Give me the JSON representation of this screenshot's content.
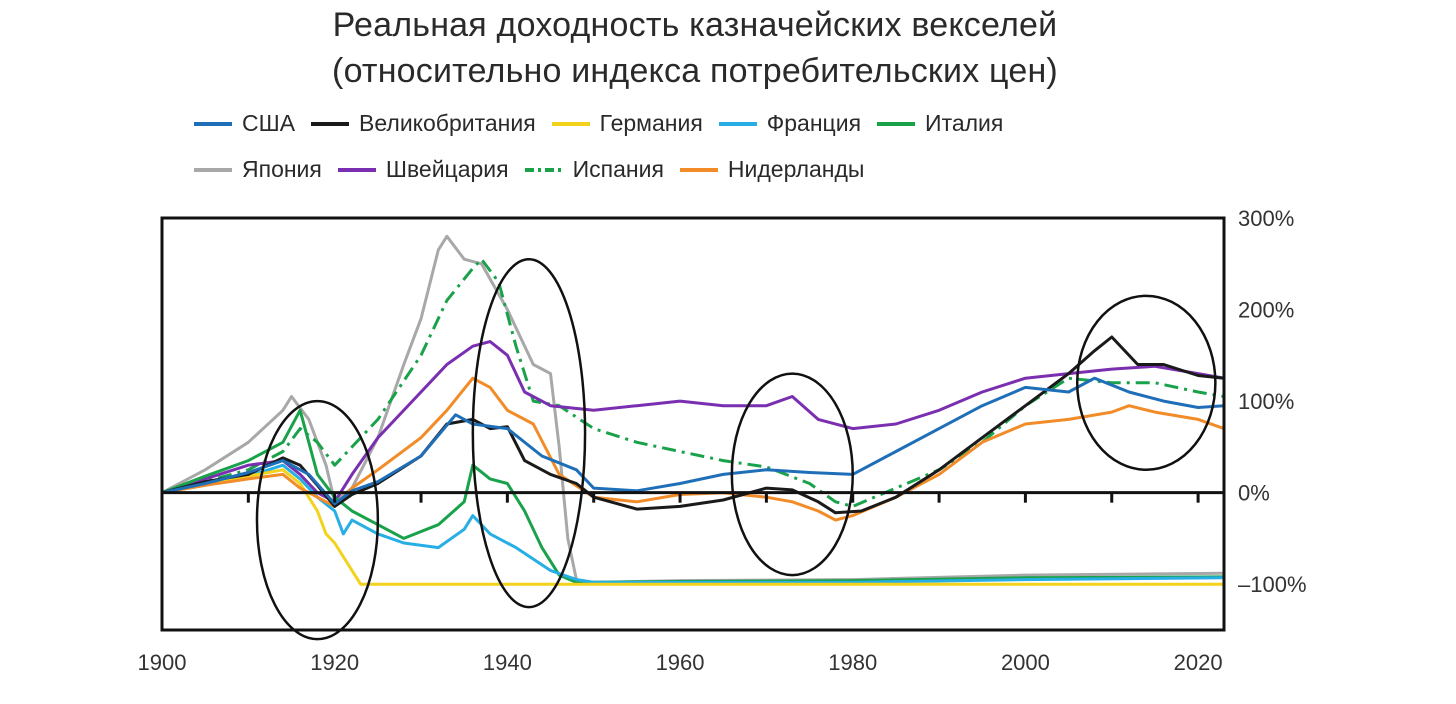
{
  "chart_data": {
    "type": "line",
    "title": "Реальная доходность казначейских векселей",
    "subtitle": "(относительно индекса потребительских цен)",
    "xlabel": "",
    "ylabel": "",
    "xlim": [
      1900,
      2023
    ],
    "ylim": [
      -150,
      300
    ],
    "x_ticks": [
      1900,
      1920,
      1940,
      1960,
      1980,
      2000,
      2020
    ],
    "x_tick_labels": [
      "1900",
      "1920",
      "1940",
      "1960",
      "1980",
      "2000",
      "2020"
    ],
    "y_ticks": [
      300,
      200,
      100,
      0,
      -100
    ],
    "y_tick_labels": [
      "300%",
      "200%",
      "100%",
      "0%",
      "–100%"
    ],
    "legend_position": "top",
    "series": [
      {
        "name": "США",
        "color": "#1f6fb8",
        "dash": "solid",
        "points": [
          [
            1900,
            0
          ],
          [
            1905,
            10
          ],
          [
            1910,
            22
          ],
          [
            1914,
            35
          ],
          [
            1917,
            20
          ],
          [
            1920,
            -12
          ],
          [
            1922,
            2
          ],
          [
            1925,
            12
          ],
          [
            1930,
            40
          ],
          [
            1934,
            85
          ],
          [
            1936,
            75
          ],
          [
            1940,
            70
          ],
          [
            1944,
            40
          ],
          [
            1948,
            25
          ],
          [
            1950,
            5
          ],
          [
            1955,
            2
          ],
          [
            1960,
            10
          ],
          [
            1965,
            20
          ],
          [
            1970,
            25
          ],
          [
            1975,
            22
          ],
          [
            1980,
            20
          ],
          [
            1985,
            45
          ],
          [
            1990,
            70
          ],
          [
            1995,
            95
          ],
          [
            2000,
            115
          ],
          [
            2005,
            110
          ],
          [
            2008,
            125
          ],
          [
            2012,
            110
          ],
          [
            2016,
            100
          ],
          [
            2020,
            93
          ],
          [
            2023,
            95
          ]
        ]
      },
      {
        "name": "Великобритания",
        "color": "#1a1a1a",
        "dash": "solid",
        "points": [
          [
            1900,
            0
          ],
          [
            1905,
            12
          ],
          [
            1910,
            20
          ],
          [
            1914,
            38
          ],
          [
            1916,
            30
          ],
          [
            1918,
            8
          ],
          [
            1920,
            -15
          ],
          [
            1922,
            -2
          ],
          [
            1925,
            10
          ],
          [
            1930,
            40
          ],
          [
            1933,
            75
          ],
          [
            1936,
            80
          ],
          [
            1938,
            70
          ],
          [
            1940,
            72
          ],
          [
            1942,
            35
          ],
          [
            1945,
            20
          ],
          [
            1948,
            10
          ],
          [
            1950,
            -5
          ],
          [
            1955,
            -18
          ],
          [
            1960,
            -15
          ],
          [
            1965,
            -8
          ],
          [
            1970,
            5
          ],
          [
            1973,
            3
          ],
          [
            1976,
            -10
          ],
          [
            1978,
            -22
          ],
          [
            1981,
            -20
          ],
          [
            1985,
            -5
          ],
          [
            1990,
            25
          ],
          [
            1995,
            60
          ],
          [
            2000,
            95
          ],
          [
            2005,
            130
          ],
          [
            2008,
            155
          ],
          [
            2010,
            170
          ],
          [
            2013,
            140
          ],
          [
            2016,
            140
          ],
          [
            2020,
            128
          ],
          [
            2023,
            125
          ]
        ]
      },
      {
        "name": "Германия",
        "color": "#f2d21a",
        "dash": "solid",
        "points": [
          [
            1900,
            0
          ],
          [
            1905,
            8
          ],
          [
            1910,
            18
          ],
          [
            1914,
            25
          ],
          [
            1916,
            10
          ],
          [
            1918,
            -20
          ],
          [
            1919,
            -45
          ],
          [
            1920,
            -55
          ],
          [
            1922,
            -85
          ],
          [
            1923,
            -100
          ],
          [
            1930,
            -100
          ],
          [
            1950,
            -100
          ],
          [
            1980,
            -100
          ],
          [
            2000,
            -100
          ],
          [
            2023,
            -100
          ]
        ]
      },
      {
        "name": "Франция",
        "color": "#27aee5",
        "dash": "solid",
        "points": [
          [
            1900,
            0
          ],
          [
            1905,
            8
          ],
          [
            1910,
            18
          ],
          [
            1914,
            30
          ],
          [
            1916,
            15
          ],
          [
            1918,
            -5
          ],
          [
            1920,
            -20
          ],
          [
            1921,
            -45
          ],
          [
            1922,
            -30
          ],
          [
            1925,
            -45
          ],
          [
            1928,
            -55
          ],
          [
            1932,
            -60
          ],
          [
            1935,
            -40
          ],
          [
            1936,
            -25
          ],
          [
            1938,
            -45
          ],
          [
            1941,
            -60
          ],
          [
            1945,
            -85
          ],
          [
            1948,
            -95
          ],
          [
            1950,
            -98
          ],
          [
            1960,
            -98
          ],
          [
            1980,
            -98
          ],
          [
            2000,
            -95
          ],
          [
            2023,
            -93
          ]
        ]
      },
      {
        "name": "Италия",
        "color": "#1aa24b",
        "dash": "solid",
        "points": [
          [
            1900,
            0
          ],
          [
            1905,
            18
          ],
          [
            1910,
            35
          ],
          [
            1914,
            55
          ],
          [
            1916,
            90
          ],
          [
            1917,
            55
          ],
          [
            1918,
            20
          ],
          [
            1920,
            -5
          ],
          [
            1922,
            -20
          ],
          [
            1925,
            -35
          ],
          [
            1928,
            -50
          ],
          [
            1932,
            -35
          ],
          [
            1935,
            -10
          ],
          [
            1936,
            30
          ],
          [
            1938,
            15
          ],
          [
            1940,
            10
          ],
          [
            1942,
            -20
          ],
          [
            1944,
            -60
          ],
          [
            1946,
            -90
          ],
          [
            1948,
            -98
          ],
          [
            1960,
            -97
          ],
          [
            1980,
            -96
          ],
          [
            2000,
            -93
          ],
          [
            2023,
            -92
          ]
        ]
      },
      {
        "name": "Япония",
        "color": "#a8a8a8",
        "dash": "solid",
        "points": [
          [
            1900,
            0
          ],
          [
            1905,
            25
          ],
          [
            1910,
            55
          ],
          [
            1914,
            90
          ],
          [
            1915,
            105
          ],
          [
            1917,
            80
          ],
          [
            1919,
            30
          ],
          [
            1920,
            -10
          ],
          [
            1922,
            5
          ],
          [
            1925,
            60
          ],
          [
            1928,
            140
          ],
          [
            1930,
            190
          ],
          [
            1932,
            265
          ],
          [
            1933,
            280
          ],
          [
            1935,
            255
          ],
          [
            1937,
            250
          ],
          [
            1940,
            200
          ],
          [
            1943,
            140
          ],
          [
            1945,
            130
          ],
          [
            1946,
            50
          ],
          [
            1947,
            -50
          ],
          [
            1948,
            -95
          ],
          [
            1950,
            -98
          ],
          [
            1960,
            -96
          ],
          [
            1980,
            -95
          ],
          [
            2000,
            -90
          ],
          [
            2023,
            -88
          ]
        ]
      },
      {
        "name": "Швейцария",
        "color": "#7a2fb0",
        "dash": "solid",
        "points": [
          [
            1900,
            0
          ],
          [
            1905,
            15
          ],
          [
            1910,
            30
          ],
          [
            1914,
            35
          ],
          [
            1916,
            20
          ],
          [
            1918,
            0
          ],
          [
            1920,
            -10
          ],
          [
            1922,
            20
          ],
          [
            1925,
            60
          ],
          [
            1930,
            110
          ],
          [
            1933,
            140
          ],
          [
            1936,
            160
          ],
          [
            1938,
            165
          ],
          [
            1940,
            150
          ],
          [
            1942,
            110
          ],
          [
            1945,
            95
          ],
          [
            1950,
            90
          ],
          [
            1955,
            95
          ],
          [
            1960,
            100
          ],
          [
            1965,
            95
          ],
          [
            1970,
            95
          ],
          [
            1973,
            105
          ],
          [
            1976,
            80
          ],
          [
            1980,
            70
          ],
          [
            1985,
            75
          ],
          [
            1990,
            90
          ],
          [
            1995,
            110
          ],
          [
            2000,
            125
          ],
          [
            2005,
            130
          ],
          [
            2010,
            135
          ],
          [
            2015,
            138
          ],
          [
            2020,
            130
          ],
          [
            2023,
            125
          ]
        ]
      },
      {
        "name": "Испания",
        "color": "#1aa24b",
        "dash": "dashdot",
        "points": [
          [
            1900,
            0
          ],
          [
            1905,
            12
          ],
          [
            1910,
            25
          ],
          [
            1914,
            45
          ],
          [
            1916,
            70
          ],
          [
            1918,
            55
          ],
          [
            1920,
            30
          ],
          [
            1922,
            50
          ],
          [
            1925,
            80
          ],
          [
            1930,
            150
          ],
          [
            1933,
            210
          ],
          [
            1936,
            245
          ],
          [
            1937,
            255
          ],
          [
            1939,
            230
          ],
          [
            1941,
            160
          ],
          [
            1943,
            100
          ],
          [
            1946,
            95
          ],
          [
            1950,
            70
          ],
          [
            1955,
            55
          ],
          [
            1960,
            45
          ],
          [
            1965,
            35
          ],
          [
            1970,
            28
          ],
          [
            1975,
            10
          ],
          [
            1978,
            -10
          ],
          [
            1980,
            -15
          ],
          [
            1985,
            5
          ],
          [
            1990,
            25
          ],
          [
            1995,
            55
          ],
          [
            2000,
            95
          ],
          [
            2005,
            125
          ],
          [
            2010,
            120
          ],
          [
            2015,
            120
          ],
          [
            2020,
            110
          ],
          [
            2023,
            105
          ]
        ]
      },
      {
        "name": "Нидерланды",
        "color": "#f28c28",
        "dash": "solid",
        "points": [
          [
            1900,
            0
          ],
          [
            1905,
            8
          ],
          [
            1910,
            15
          ],
          [
            1914,
            20
          ],
          [
            1916,
            5
          ],
          [
            1918,
            -5
          ],
          [
            1920,
            -15
          ],
          [
            1922,
            5
          ],
          [
            1925,
            25
          ],
          [
            1930,
            60
          ],
          [
            1933,
            90
          ],
          [
            1936,
            125
          ],
          [
            1938,
            115
          ],
          [
            1940,
            90
          ],
          [
            1943,
            75
          ],
          [
            1946,
            20
          ],
          [
            1950,
            -5
          ],
          [
            1955,
            -10
          ],
          [
            1960,
            -2
          ],
          [
            1965,
            0
          ],
          [
            1970,
            -5
          ],
          [
            1973,
            -10
          ],
          [
            1976,
            -20
          ],
          [
            1978,
            -30
          ],
          [
            1980,
            -25
          ],
          [
            1985,
            -5
          ],
          [
            1990,
            20
          ],
          [
            1995,
            55
          ],
          [
            2000,
            75
          ],
          [
            2005,
            80
          ],
          [
            2010,
            88
          ],
          [
            2012,
            95
          ],
          [
            2015,
            88
          ],
          [
            2020,
            80
          ],
          [
            2023,
            70
          ]
        ]
      }
    ],
    "annotations": [
      {
        "type": "ellipse",
        "center": [
          1918,
          -30
        ],
        "rx_years": 7,
        "ry_value": 130
      },
      {
        "type": "ellipse",
        "center": [
          1942.5,
          65
        ],
        "rx_years": 6.5,
        "ry_value": 190
      },
      {
        "type": "ellipse",
        "center": [
          1973,
          20
        ],
        "rx_years": 7,
        "ry_value": 110
      },
      {
        "type": "ellipse",
        "center": [
          2014,
          120
        ],
        "rx_years": 8,
        "ry_value": 95
      }
    ]
  }
}
